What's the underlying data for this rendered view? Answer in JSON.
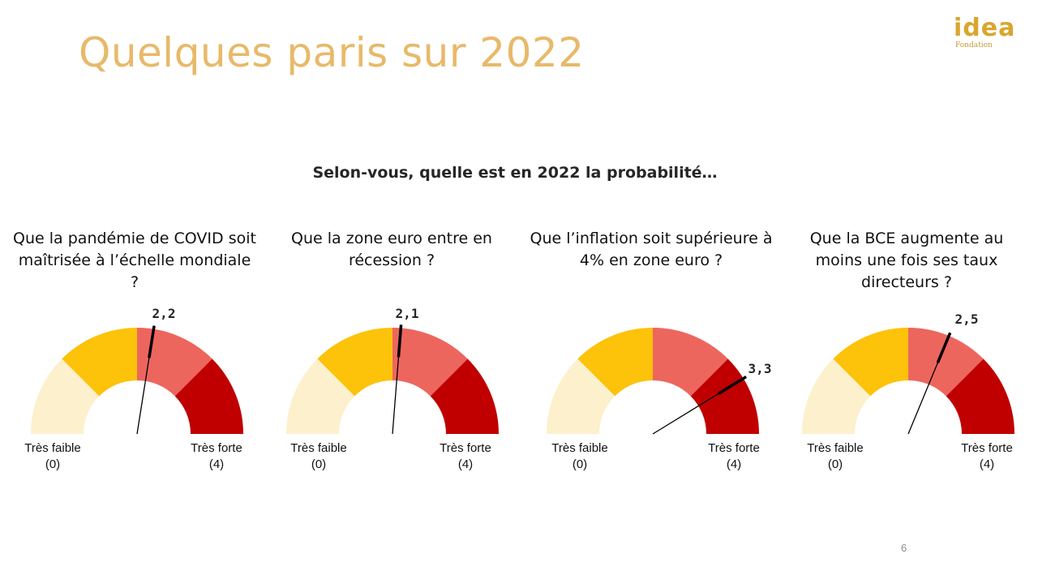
{
  "slide": {
    "title": "Quelques paris sur 2022",
    "page_number": "6",
    "logo": {
      "word": "idea",
      "sub": "Fondation"
    }
  },
  "colors": {
    "title": "#e8b96a",
    "zone_very_low": "#fdf0cc",
    "zone_low": "#fdc20a",
    "zone_high": "#ed665e",
    "zone_very_high": "#c00000",
    "needle": "#000000"
  },
  "chart_data": {
    "type": "gauge",
    "title": "Selon-vous, quelle est en 2022 la probabilité…",
    "range": [
      0,
      4
    ],
    "min_label": "Très faible",
    "min_value_label": "(0)",
    "max_label": "Très forte",
    "max_value_label": "(4)",
    "zones": [
      {
        "from": 0,
        "to": 1
      },
      {
        "from": 1,
        "to": 2
      },
      {
        "from": 2,
        "to": 3
      },
      {
        "from": 3,
        "to": 4
      }
    ],
    "gauges": [
      {
        "question": "Que la pandémie de COVID soit maîtrisée à l’échelle mondiale ?",
        "value": 2.2,
        "value_label": "2,2"
      },
      {
        "question": "Que la zone euro entre en récession ?",
        "value": 2.1,
        "value_label": "2,1"
      },
      {
        "question": "Que l’inflation soit supérieure à 4% en zone euro ?",
        "value": 3.3,
        "value_label": "3,3"
      },
      {
        "question": "Que la BCE augmente au moins une fois ses taux directeurs ?",
        "value": 2.5,
        "value_label": "2,5"
      }
    ]
  }
}
